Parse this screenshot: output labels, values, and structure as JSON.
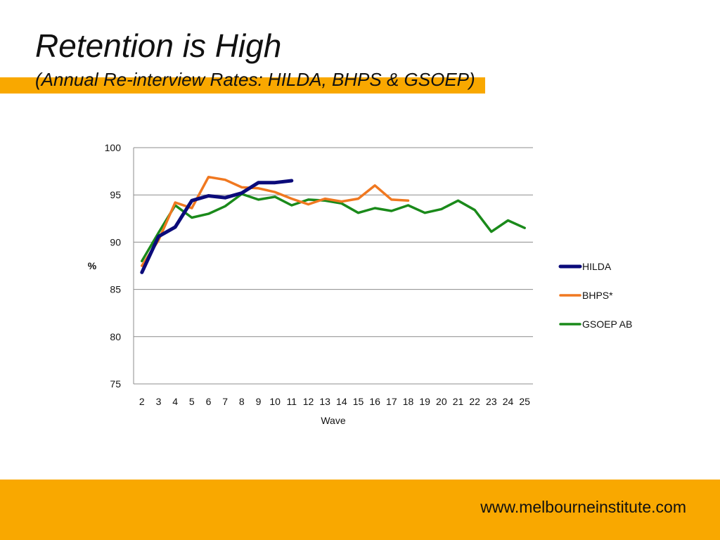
{
  "slide": {
    "title": "Retention is High",
    "subtitle": "(Annual Re-interview Rates: HILDA, BHPS & GSOEP)",
    "footer_url": "www.melbourneinstitute.com",
    "accent_color": "#f9a800"
  },
  "chart_data": {
    "type": "line",
    "title": "",
    "xlabel": "Wave",
    "ylabel": "%",
    "x": [
      2,
      3,
      4,
      5,
      6,
      7,
      8,
      9,
      10,
      11,
      12,
      13,
      14,
      15,
      16,
      17,
      18,
      19,
      20,
      21,
      22,
      23,
      24,
      25
    ],
    "ylim": [
      75,
      100
    ],
    "yticks": [
      75,
      80,
      85,
      90,
      95,
      100
    ],
    "grid": true,
    "legend": "right",
    "series": [
      {
        "name": "HILDA",
        "color": "#0b0b7a",
        "x": [
          2,
          3,
          4,
          5,
          6,
          7,
          8,
          9,
          10,
          11
        ],
        "values": [
          86.8,
          90.6,
          91.6,
          94.4,
          94.9,
          94.7,
          95.2,
          96.3,
          96.3,
          96.5
        ]
      },
      {
        "name": "BHPS*",
        "color": "#f07820",
        "x": [
          2,
          3,
          4,
          5,
          6,
          7,
          8,
          9,
          10,
          11,
          12,
          13,
          14,
          15,
          16,
          17,
          18
        ],
        "values": [
          87.5,
          90.2,
          94.2,
          93.6,
          96.9,
          96.6,
          95.8,
          95.7,
          95.3,
          94.6,
          94.0,
          94.6,
          94.3,
          94.6,
          96.0,
          94.5,
          94.4
        ]
      },
      {
        "name": "GSOEP AB",
        "color": "#1a8a1a",
        "x": [
          2,
          3,
          4,
          5,
          6,
          7,
          8,
          9,
          10,
          11,
          12,
          13,
          14,
          15,
          16,
          17,
          18,
          19,
          20,
          21,
          22,
          23,
          24,
          25
        ],
        "values": [
          88.0,
          91.0,
          93.9,
          92.6,
          93.0,
          93.8,
          95.1,
          94.5,
          94.8,
          93.9,
          94.5,
          94.4,
          94.1,
          93.1,
          93.6,
          93.3,
          93.9,
          93.1,
          93.5,
          94.4,
          93.4,
          91.1,
          92.3,
          91.5
        ]
      }
    ]
  }
}
